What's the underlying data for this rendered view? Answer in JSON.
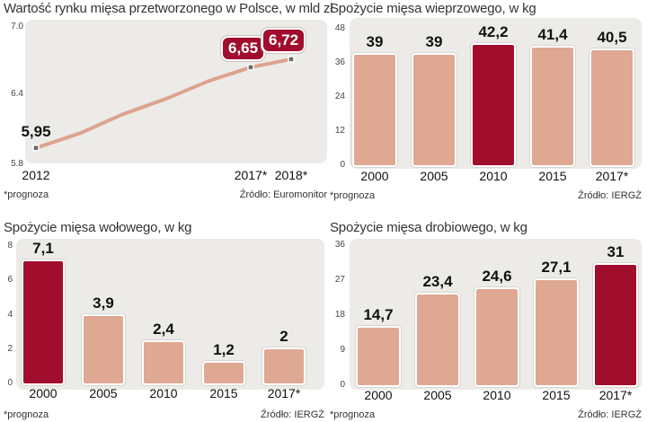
{
  "chart_data": [
    {
      "type": "line",
      "title": "Wartość rynku mięsa przetworzonego w Polsce, w mld zł",
      "x": [
        "2012",
        "",
        "",
        "",
        "",
        "2017*",
        "2018*"
      ],
      "values": [
        5.95,
        6.08,
        6.24,
        6.38,
        6.53,
        6.65,
        6.72
      ],
      "point_labels": [
        "5,95",
        "",
        "",
        "",
        "",
        "6,65",
        "6,72"
      ],
      "highlighted": [
        false,
        false,
        false,
        false,
        false,
        true,
        true
      ],
      "yticks": [
        "7.0",
        "6.4",
        "5.8"
      ],
      "ytick_values": [
        7.0,
        6.4,
        5.8
      ],
      "ylim": [
        5.8,
        7.0
      ],
      "note": "*prognoza",
      "source": "Źródło: Euromonitor"
    },
    {
      "type": "bar",
      "title": "Spożycie mięsa wieprzowego, w kg",
      "categories": [
        "2000",
        "2005",
        "2010",
        "2015",
        "2017*"
      ],
      "values": [
        39,
        39,
        42.2,
        41.4,
        40.5
      ],
      "value_labels": [
        "39",
        "39",
        "42,2",
        "41,4",
        "40,5"
      ],
      "highlight_index": 2,
      "yticks": [
        "48",
        "36",
        "24",
        "12",
        "0"
      ],
      "ytick_values": [
        48,
        36,
        24,
        12,
        0
      ],
      "ylim": [
        0,
        48
      ],
      "note": "*prognoza",
      "source": "Źródło: IERGŻ"
    },
    {
      "type": "bar",
      "title": "Spożycie mięsa wołowego, w kg",
      "categories": [
        "2000",
        "2005",
        "2010",
        "2015",
        "2017*"
      ],
      "values": [
        7.1,
        3.9,
        2.4,
        1.2,
        2
      ],
      "value_labels": [
        "7,1",
        "3,9",
        "2,4",
        "1,2",
        "2"
      ],
      "highlight_index": 0,
      "yticks": [
        "8",
        "6",
        "4",
        "2",
        "0"
      ],
      "ytick_values": [
        8,
        6,
        4,
        2,
        0
      ],
      "ylim": [
        0,
        8
      ],
      "note": "*prognoza",
      "source": "Źródło: IERGŻ"
    },
    {
      "type": "bar",
      "title": "Spożycie mięsa drobiowego, w kg",
      "categories": [
        "2000",
        "2005",
        "2010",
        "2015",
        "2017*"
      ],
      "values": [
        14.7,
        23.4,
        24.6,
        27.1,
        31
      ],
      "value_labels": [
        "14,7",
        "23,4",
        "24,6",
        "27,1",
        "31"
      ],
      "highlight_index": 4,
      "yticks": [
        "36",
        "27",
        "18",
        "9",
        "0"
      ],
      "ytick_values": [
        36,
        27,
        18,
        9,
        0
      ],
      "ylim": [
        0,
        36
      ],
      "note": "*prognoza",
      "source": "Źródło: IERGŻ"
    }
  ]
}
